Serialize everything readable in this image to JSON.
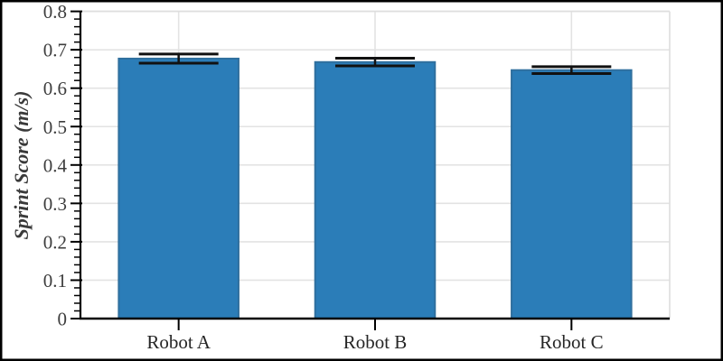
{
  "chart_data": {
    "type": "bar",
    "title": "",
    "categories": [
      "Robot A",
      "Robot B",
      "Robot C"
    ],
    "values": [
      0.677,
      0.668,
      0.647
    ],
    "errors": [
      0.012,
      0.01,
      0.009
    ],
    "xlabel": "",
    "ylabel": "Sprint Score (m/s)",
    "ylim": [
      0,
      0.8
    ],
    "ytick_step": 0.1,
    "ytick_minor_step": 0.02,
    "ytick_labels": [
      "0",
      "0.1",
      "0.2",
      "0.3",
      "0.4",
      "0.5",
      "0.6",
      "0.7",
      "0.8"
    ],
    "grid": true,
    "grid_vertical_at_categories": true,
    "legend_position": "none",
    "bar_width_fraction": 0.61,
    "colors": {
      "bar_fill": "#2b7db8",
      "bar_fill_opacity": 0.8,
      "bar_edge": "#2f6f9e",
      "error_bar": "#111111",
      "grid": "#e3e3e3",
      "spine_dark": "#000000",
      "spine_light": "#dedede",
      "tick_label_text": "#3d3d3d",
      "category_label_text": "#262626",
      "figure_border": "#000000"
    }
  }
}
